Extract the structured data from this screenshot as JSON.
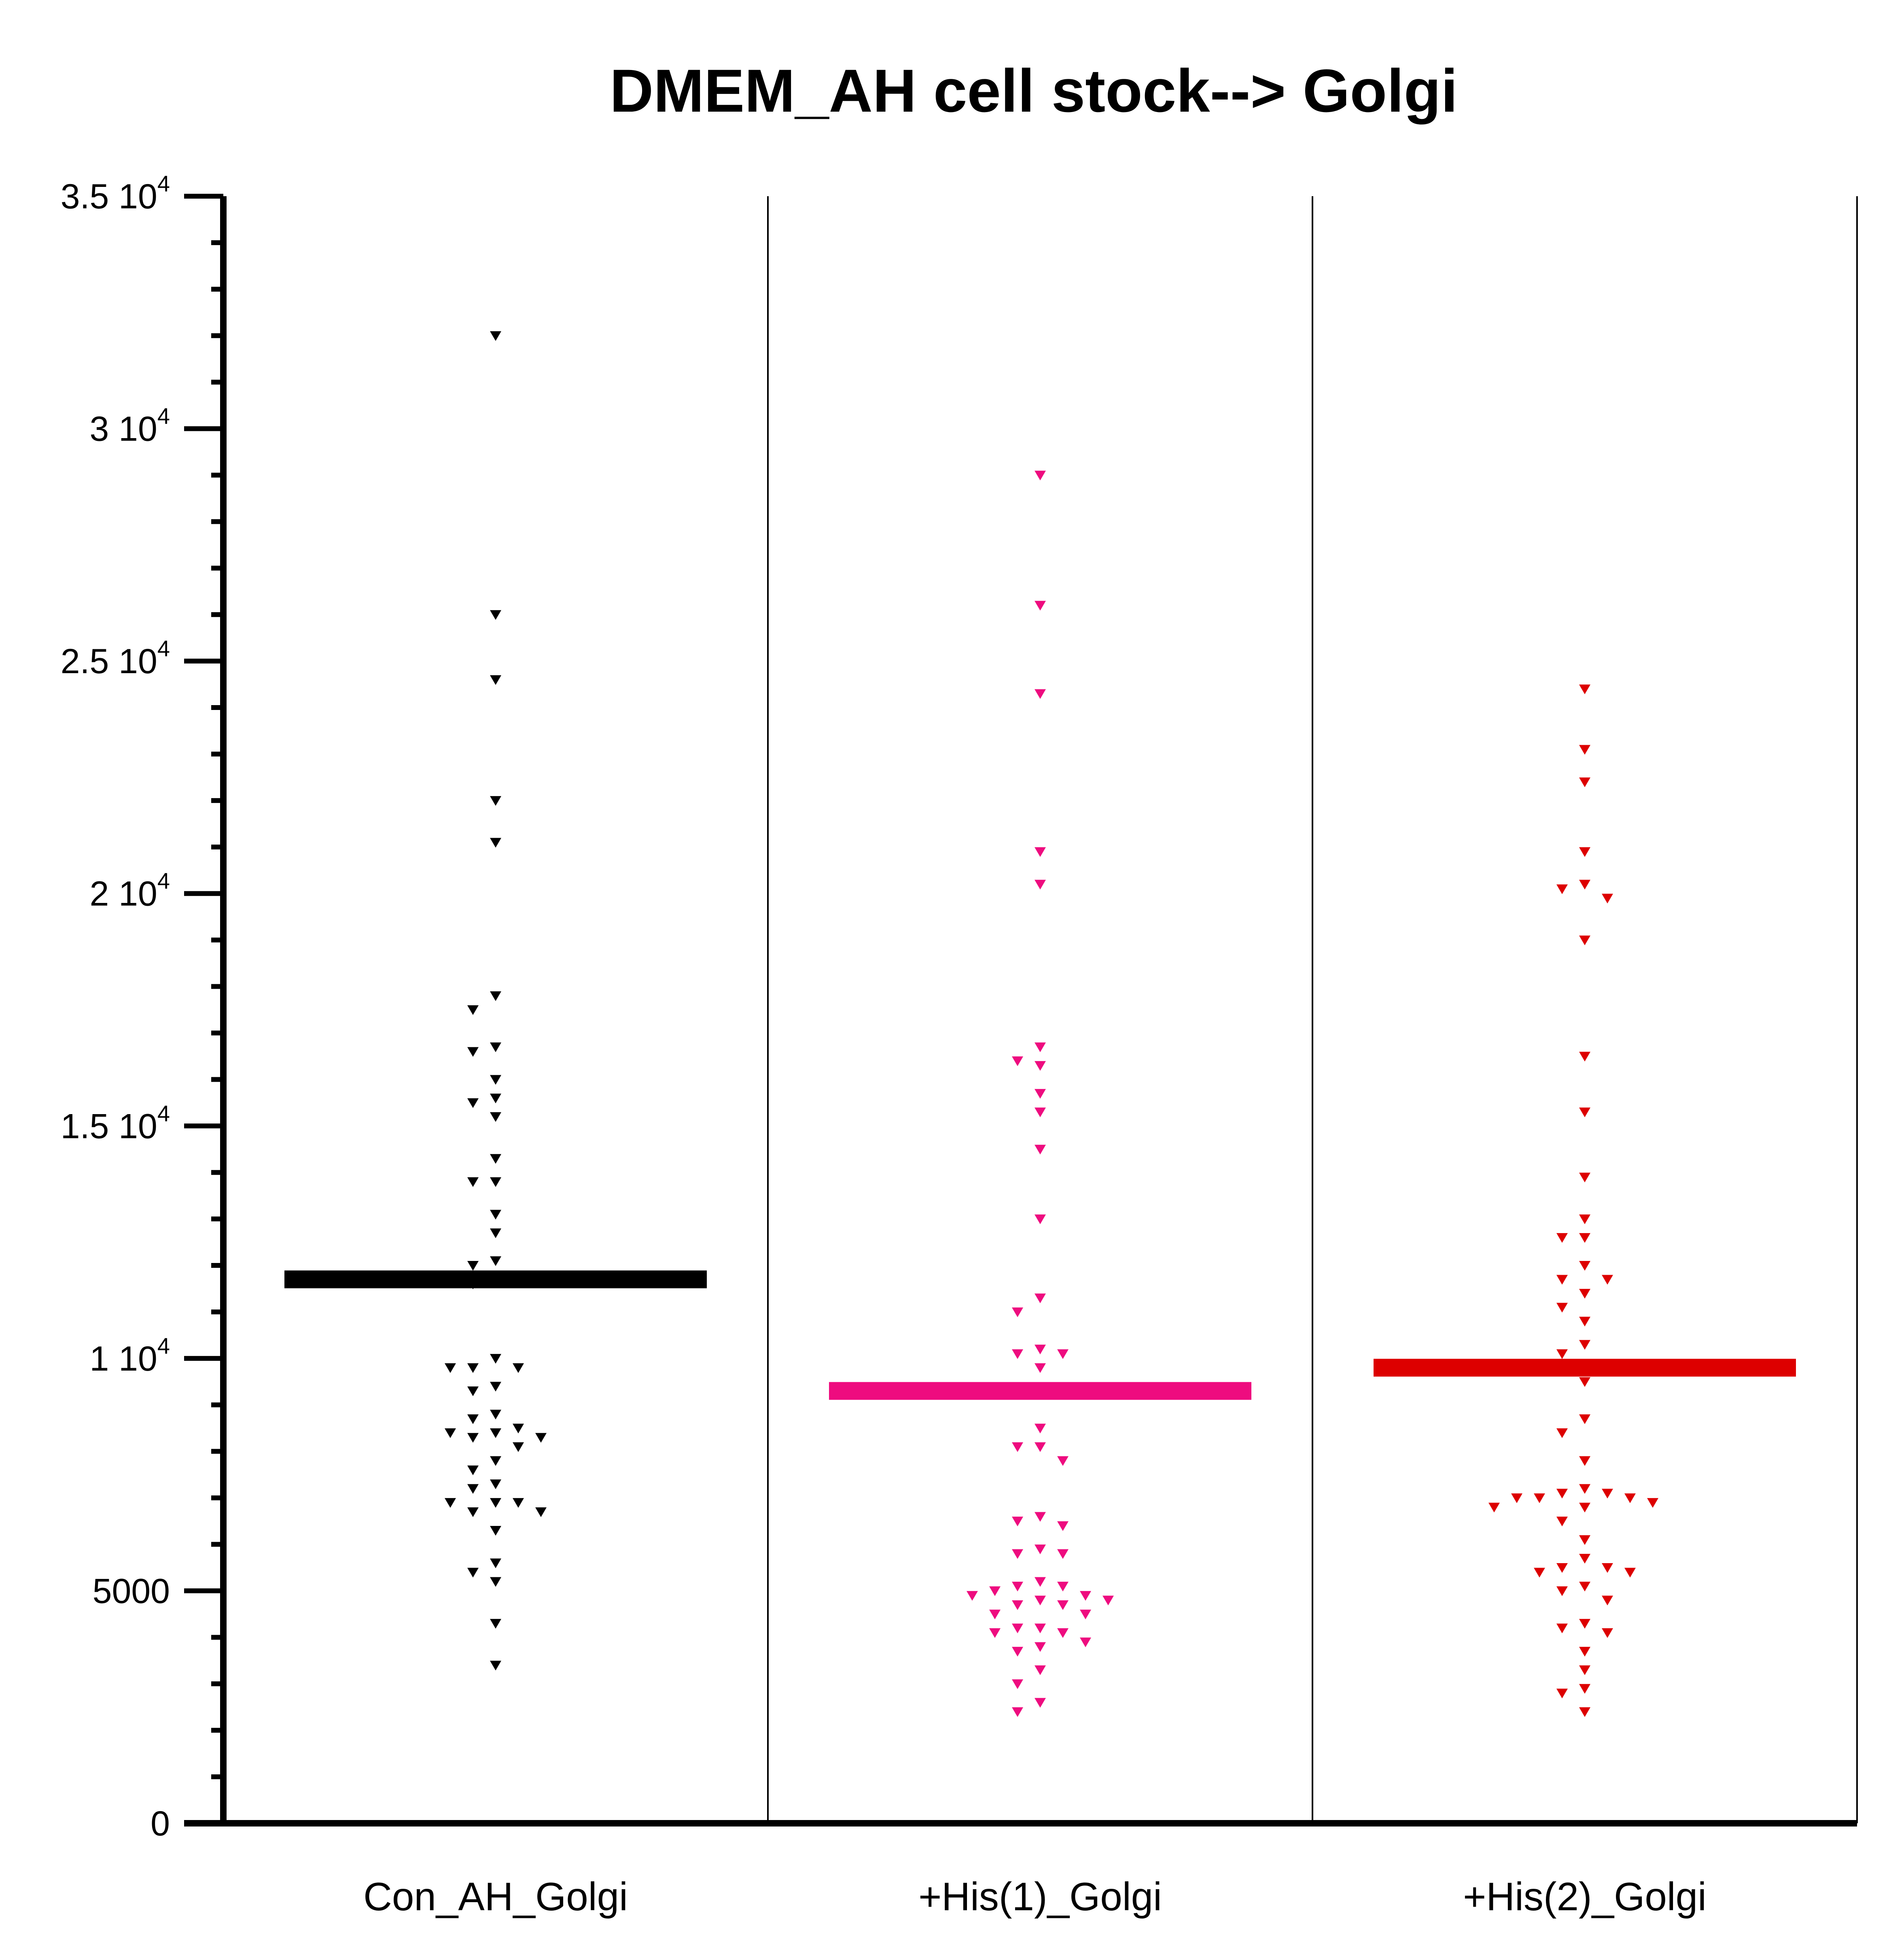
{
  "chart_data": {
    "type": "scatter",
    "subtype": "column-scatter-with-mean",
    "title": "DMEM_AH cell stock--> Golgi",
    "xlabel": "",
    "ylabel": "",
    "ylim": [
      0,
      35000
    ],
    "y_ticks": [
      {
        "value": 0,
        "label": "0",
        "exp": ""
      },
      {
        "value": 5000,
        "label": "5000",
        "exp": ""
      },
      {
        "value": 10000,
        "label": "1 10",
        "exp": "4"
      },
      {
        "value": 15000,
        "label": "1.5 10",
        "exp": "4"
      },
      {
        "value": 20000,
        "label": "2 10",
        "exp": "4"
      },
      {
        "value": 25000,
        "label": "2.5 10",
        "exp": "4"
      },
      {
        "value": 30000,
        "label": "3 10",
        "exp": "4"
      },
      {
        "value": 35000,
        "label": "3.5 10",
        "exp": "4"
      }
    ],
    "minor_tick_step": 1000,
    "categories": [
      "Con_AH_Golgi",
      "+His(1)_Golgi",
      "+His(2)_Golgi"
    ],
    "marker": "triangle-down",
    "series": [
      {
        "category": "Con_AH_Golgi",
        "color": "#000000",
        "mean": 11700,
        "values": [
          32000,
          26000,
          24600,
          22000,
          21100,
          17800,
          17500,
          16700,
          16600,
          16000,
          15600,
          15500,
          15200,
          14300,
          13800,
          13800,
          13100,
          12700,
          12100,
          12000,
          11700,
          11600,
          10000,
          9800,
          9800,
          9800,
          9400,
          9300,
          8800,
          8700,
          8500,
          8400,
          8400,
          8300,
          8300,
          8100,
          7800,
          7600,
          7300,
          7200,
          6900,
          6900,
          6900,
          6700,
          6700,
          6300,
          5600,
          5400,
          5200,
          4300,
          3400
        ]
      },
      {
        "category": "+His(1)_Golgi",
        "color": "#ee0c7f",
        "mean": 9300,
        "values": [
          29000,
          26200,
          24300,
          20900,
          20200,
          16700,
          16400,
          16300,
          15700,
          15300,
          14500,
          13000,
          11300,
          11000,
          10200,
          10100,
          10100,
          9800,
          8500,
          8100,
          8100,
          7800,
          6600,
          6500,
          6400,
          5900,
          5800,
          5800,
          5200,
          5100,
          5100,
          5000,
          4900,
          4900,
          4800,
          4800,
          4700,
          4700,
          4500,
          4500,
          4200,
          4200,
          4100,
          4100,
          3900,
          3800,
          3700,
          3300,
          3000,
          2600,
          2400
        ]
      },
      {
        "category": "+His(2)_Golgi",
        "color": "#dd0000",
        "mean": 9800,
        "values": [
          24400,
          23100,
          22400,
          20900,
          20200,
          20100,
          19900,
          19000,
          16500,
          15300,
          13900,
          13000,
          12600,
          12600,
          12000,
          11700,
          11700,
          11400,
          11100,
          10800,
          10300,
          10100,
          9500,
          8700,
          8400,
          7800,
          7200,
          7100,
          7100,
          7000,
          7000,
          7000,
          6900,
          6800,
          6800,
          6500,
          6100,
          5700,
          5500,
          5500,
          5400,
          5400,
          5100,
          5000,
          4800,
          4300,
          4200,
          4100,
          3700,
          3300,
          2900,
          2800,
          2400
        ]
      }
    ]
  }
}
